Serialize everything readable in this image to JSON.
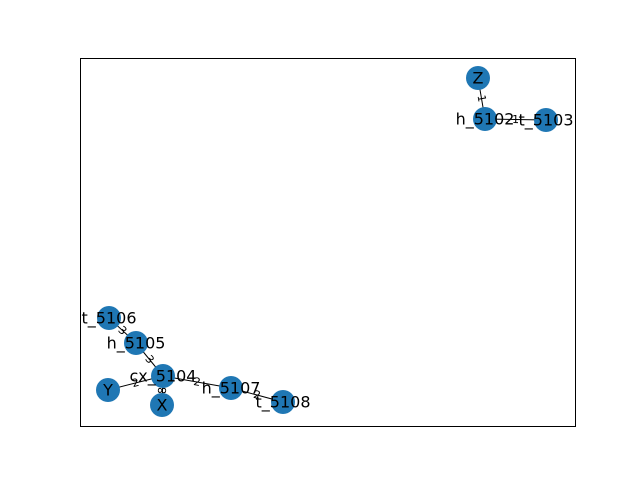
{
  "colors": {
    "node": "#1f77b4",
    "edge": "#000000",
    "frame": "#000000",
    "background": "#ffffff"
  },
  "graph": {
    "nodes": [
      {
        "id": "Z",
        "label": "Z"
      },
      {
        "id": "h_5102",
        "label": "h_5102"
      },
      {
        "id": "t_5103",
        "label": "t_5103"
      },
      {
        "id": "t_5106",
        "label": "t_5106"
      },
      {
        "id": "h_5105",
        "label": "h_5105"
      },
      {
        "id": "cx_5104",
        "label": "cx_5104"
      },
      {
        "id": "Y",
        "label": "Y"
      },
      {
        "id": "X",
        "label": "X"
      },
      {
        "id": "h_5107",
        "label": "h_5107"
      },
      {
        "id": "t_5108",
        "label": "t_5108"
      }
    ],
    "edges": [
      {
        "source": "Z",
        "target": "h_5102",
        "label": "1"
      },
      {
        "source": "h_5102",
        "target": "t_5103",
        "label": "1"
      },
      {
        "source": "t_5106",
        "target": "h_5105",
        "label": "3"
      },
      {
        "source": "h_5105",
        "target": "cx_5104",
        "label": "3"
      },
      {
        "source": "Y",
        "target": "cx_5104",
        "label": "2"
      },
      {
        "source": "cx_5104",
        "target": "X",
        "label": "8"
      },
      {
        "source": "cx_5104",
        "target": "h_5107",
        "label": "2"
      },
      {
        "source": "h_5107",
        "target": "t_5108",
        "label": "2"
      }
    ]
  }
}
